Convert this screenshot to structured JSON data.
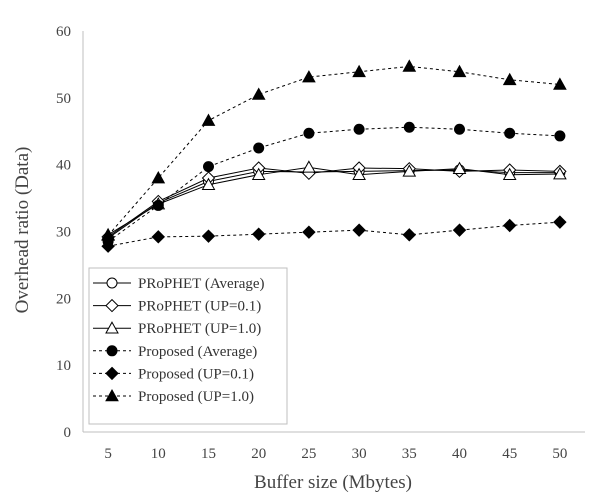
{
  "chart_data": {
    "type": "line",
    "title": "",
    "xlabel": "Buffer size (Mbytes)",
    "ylabel": "Overhead ratio (Data)",
    "x": [
      5,
      10,
      15,
      20,
      25,
      30,
      35,
      40,
      45,
      50
    ],
    "ylim": [
      0,
      60
    ],
    "yticks": [
      0,
      10,
      20,
      30,
      40,
      50,
      60
    ],
    "grid": false,
    "legend": "bottom-left",
    "series": [
      {
        "name": "PRoPHET (Average)",
        "marker": "circle-open",
        "line": "solid",
        "values": [
          29.0,
          34.3,
          37.5,
          39.0,
          38.9,
          39.0,
          39.1,
          39.2,
          38.8,
          38.8
        ]
      },
      {
        "name": "PRoPHET (UP=0.1)",
        "marker": "diamond-open",
        "line": "solid",
        "values": [
          29.2,
          34.5,
          38.0,
          39.5,
          38.7,
          39.5,
          39.4,
          39.0,
          39.2,
          39.0
        ]
      },
      {
        "name": "PRoPHET (UP=1.0)",
        "marker": "triangle-open",
        "line": "solid",
        "values": [
          29.5,
          34.1,
          37.0,
          38.5,
          39.6,
          38.5,
          39.0,
          39.4,
          38.5,
          38.6
        ]
      },
      {
        "name": "Proposed (Average)",
        "marker": "circle-filled",
        "line": "dashed",
        "values": [
          28.5,
          33.9,
          39.7,
          42.5,
          44.7,
          45.3,
          45.6,
          45.3,
          44.7,
          44.3
        ]
      },
      {
        "name": "Proposed (UP=0.1)",
        "marker": "diamond-filled",
        "line": "dashed",
        "values": [
          27.8,
          29.2,
          29.3,
          29.6,
          29.9,
          30.2,
          29.5,
          30.2,
          30.9,
          31.4
        ]
      },
      {
        "name": "Proposed (UP=1.0)",
        "marker": "triangle-filled",
        "line": "dashed",
        "values": [
          29.4,
          38.0,
          46.6,
          50.5,
          53.1,
          53.9,
          54.7,
          53.9,
          52.7,
          52.0
        ]
      }
    ],
    "colors": {
      "line": "#000000",
      "axis": "#bfbfbf",
      "text": "#444444"
    }
  }
}
